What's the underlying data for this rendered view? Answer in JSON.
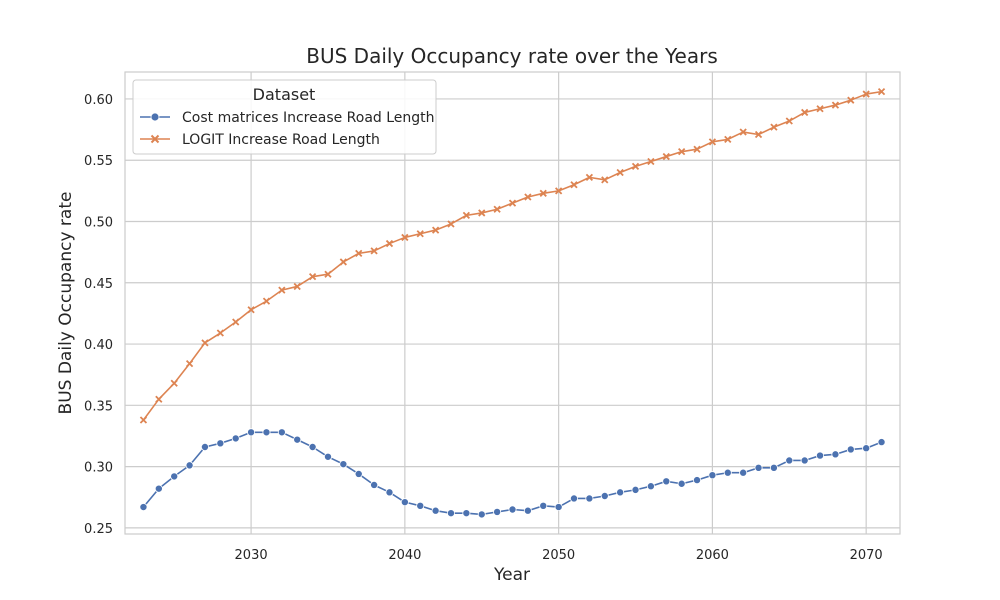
{
  "chart_data": {
    "type": "line",
    "title": "BUS Daily Occupancy rate over the Years",
    "xlabel": "Year",
    "ylabel": "BUS Daily Occupancy rate",
    "xlim": [
      2021.8,
      2072.2
    ],
    "ylim": [
      0.245,
      0.622
    ],
    "xticks": [
      2030,
      2040,
      2050,
      2060,
      2070
    ],
    "yticks": [
      0.25,
      0.3,
      0.35,
      0.4,
      0.45,
      0.5,
      0.55,
      0.6
    ],
    "ytick_labels": [
      "0.25",
      "0.30",
      "0.35",
      "0.40",
      "0.45",
      "0.50",
      "0.55",
      "0.60"
    ],
    "grid": true,
    "legend": {
      "title": "Dataset",
      "placement": "top-left"
    },
    "x": [
      2023,
      2024,
      2025,
      2026,
      2027,
      2028,
      2029,
      2030,
      2031,
      2032,
      2033,
      2034,
      2035,
      2036,
      2037,
      2038,
      2039,
      2040,
      2041,
      2042,
      2043,
      2044,
      2045,
      2046,
      2047,
      2048,
      2049,
      2050,
      2051,
      2052,
      2053,
      2054,
      2055,
      2056,
      2057,
      2058,
      2059,
      2060,
      2061,
      2062,
      2063,
      2064,
      2065,
      2066,
      2067,
      2068,
      2069,
      2070,
      2071
    ],
    "series": [
      {
        "name": "Cost matrices Increase Road Length",
        "color": "#4c72b0",
        "marker": "circle",
        "values": [
          0.267,
          0.282,
          0.292,
          0.301,
          0.316,
          0.319,
          0.323,
          0.328,
          0.328,
          0.328,
          0.322,
          0.316,
          0.308,
          0.302,
          0.294,
          0.285,
          0.279,
          0.271,
          0.268,
          0.264,
          0.262,
          0.262,
          0.261,
          0.263,
          0.265,
          0.264,
          0.268,
          0.267,
          0.274,
          0.274,
          0.276,
          0.279,
          0.281,
          0.284,
          0.288,
          0.286,
          0.289,
          0.293,
          0.295,
          0.295,
          0.299,
          0.299,
          0.305,
          0.305,
          0.309,
          0.31,
          0.314,
          0.315,
          0.32
        ]
      },
      {
        "name": "LOGIT Increase Road Length",
        "color": "#dd8452",
        "marker": "x",
        "values": [
          0.338,
          0.355,
          0.368,
          0.384,
          0.401,
          0.409,
          0.418,
          0.428,
          0.435,
          0.444,
          0.447,
          0.455,
          0.457,
          0.467,
          0.474,
          0.476,
          0.482,
          0.487,
          0.49,
          0.493,
          0.498,
          0.505,
          0.507,
          0.51,
          0.515,
          0.52,
          0.523,
          0.525,
          0.53,
          0.536,
          0.534,
          0.54,
          0.545,
          0.549,
          0.553,
          0.557,
          0.559,
          0.565,
          0.567,
          0.573,
          0.571,
          0.577,
          0.582,
          0.589,
          0.592,
          0.595,
          0.599,
          0.604,
          0.606
        ]
      }
    ]
  }
}
